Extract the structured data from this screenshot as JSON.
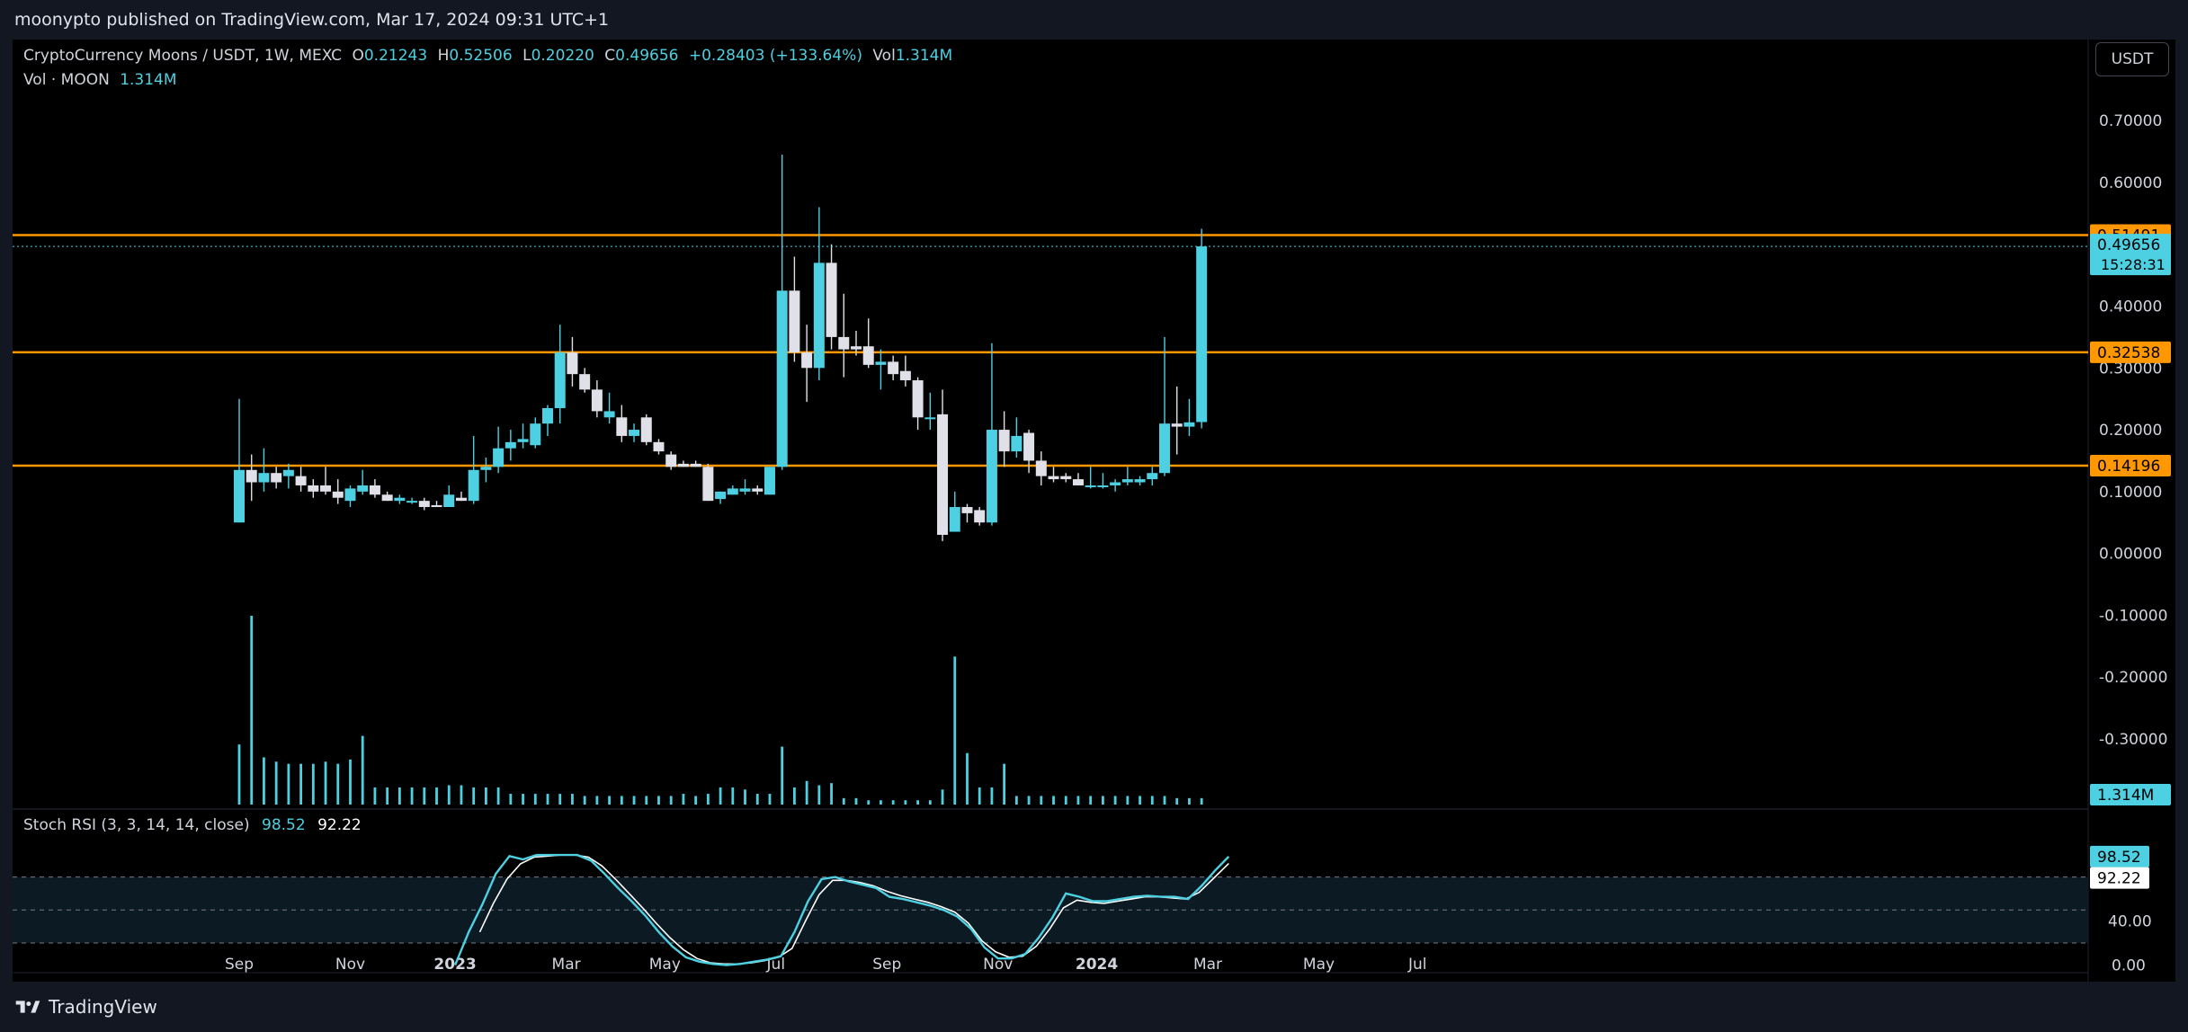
{
  "header": {
    "published_text": "moonypto published on TradingView.com, Mar 17, 2024 09:31 UTC+1"
  },
  "legend": {
    "symbol": "CryptoCurrency Moons / USDT, 1W, MEXC",
    "open_label": "O",
    "open": "0.21243",
    "high_label": "H",
    "high": "0.52506",
    "low_label": "L",
    "low": "0.20220",
    "close_label": "C",
    "close": "0.49656",
    "change": "+0.28403 (+133.64%)",
    "vol_label": "Vol",
    "vol": "1.314M",
    "vol_series_label": "Vol · MOON",
    "vol_series_value": "1.314M",
    "stoch_label": "Stoch RSI (3, 3, 14, 14, close)",
    "stoch_k": "98.52",
    "stoch_d": "92.22"
  },
  "currency_button": "USDT",
  "footer": {
    "brand": "TradingView"
  },
  "colors": {
    "up": "#4dd0e1",
    "down": "#e0e0e8",
    "level": "#ff9800",
    "background": "#000000",
    "d_line": "#ffffff"
  },
  "price_labels": {
    "last_price": "0.49656",
    "countdown": "15:28:31",
    "volume_last": "1.314M",
    "stoch_k_tag": "98.52",
    "stoch_d_tag": "92.22"
  },
  "chart_data": {
    "type": "candlestick",
    "y_axis": {
      "ticks": [
        0.7,
        0.6,
        0.4,
        0.3,
        0.2,
        0.1,
        0.0,
        -0.1,
        -0.2,
        -0.3
      ],
      "tick_labels": [
        "0.70000",
        "0.60000",
        "0.40000",
        "0.30000",
        "0.20000",
        "0.10000",
        "0.00000",
        "-0.10000",
        "-0.20000",
        "-0.30000"
      ],
      "range": [
        -0.41,
        0.78
      ]
    },
    "x_axis": {
      "labels": [
        "Sep",
        "Nov",
        "2023",
        "Mar",
        "May",
        "Jul",
        "Sep",
        "Nov",
        "2024",
        "Mar",
        "May",
        "Jul"
      ],
      "label_week_index": [
        0,
        9,
        17.5,
        26.5,
        34.5,
        43.5,
        52.5,
        61.5,
        69.5,
        78.5,
        87.5,
        95.5
      ]
    },
    "horizontal_levels": [
      {
        "value": 0.51491,
        "label": "0.51491"
      },
      {
        "value": 0.32538,
        "label": "0.32538"
      },
      {
        "value": 0.14196,
        "label": "0.14196"
      }
    ],
    "candles": [
      [
        0.05,
        0.25,
        0.05,
        0.135
      ],
      [
        0.135,
        0.16,
        0.085,
        0.115
      ],
      [
        0.115,
        0.17,
        0.1,
        0.13
      ],
      [
        0.13,
        0.14,
        0.105,
        0.115
      ],
      [
        0.125,
        0.145,
        0.105,
        0.135
      ],
      [
        0.125,
        0.14,
        0.1,
        0.11
      ],
      [
        0.11,
        0.12,
        0.09,
        0.1
      ],
      [
        0.11,
        0.14,
        0.095,
        0.1
      ],
      [
        0.1,
        0.12,
        0.08,
        0.09
      ],
      [
        0.085,
        0.11,
        0.075,
        0.105
      ],
      [
        0.1,
        0.135,
        0.095,
        0.11
      ],
      [
        0.11,
        0.12,
        0.09,
        0.095
      ],
      [
        0.095,
        0.1,
        0.085,
        0.085
      ],
      [
        0.085,
        0.095,
        0.08,
        0.09
      ],
      [
        0.085,
        0.09,
        0.08,
        0.085
      ],
      [
        0.085,
        0.09,
        0.07,
        0.075
      ],
      [
        0.078,
        0.085,
        0.075,
        0.075
      ],
      [
        0.075,
        0.11,
        0.075,
        0.095
      ],
      [
        0.09,
        0.1,
        0.085,
        0.085
      ],
      [
        0.085,
        0.19,
        0.08,
        0.135
      ],
      [
        0.135,
        0.155,
        0.115,
        0.14
      ],
      [
        0.14,
        0.205,
        0.13,
        0.17
      ],
      [
        0.17,
        0.2,
        0.15,
        0.18
      ],
      [
        0.18,
        0.21,
        0.17,
        0.185
      ],
      [
        0.175,
        0.22,
        0.17,
        0.21
      ],
      [
        0.21,
        0.24,
        0.19,
        0.235
      ],
      [
        0.235,
        0.37,
        0.21,
        0.325
      ],
      [
        0.325,
        0.35,
        0.27,
        0.29
      ],
      [
        0.29,
        0.3,
        0.26,
        0.265
      ],
      [
        0.265,
        0.28,
        0.22,
        0.23
      ],
      [
        0.22,
        0.26,
        0.21,
        0.23
      ],
      [
        0.22,
        0.24,
        0.18,
        0.19
      ],
      [
        0.19,
        0.21,
        0.18,
        0.2
      ],
      [
        0.22,
        0.225,
        0.175,
        0.18
      ],
      [
        0.18,
        0.185,
        0.16,
        0.165
      ],
      [
        0.16,
        0.165,
        0.135,
        0.14
      ],
      [
        0.145,
        0.15,
        0.14,
        0.14
      ],
      [
        0.145,
        0.15,
        0.14,
        0.14
      ],
      [
        0.14,
        0.145,
        0.085,
        0.085
      ],
      [
        0.088,
        0.1,
        0.08,
        0.1
      ],
      [
        0.095,
        0.11,
        0.095,
        0.105
      ],
      [
        0.1,
        0.12,
        0.095,
        0.105
      ],
      [
        0.105,
        0.11,
        0.095,
        0.1
      ],
      [
        0.095,
        0.14,
        0.095,
        0.14
      ],
      [
        0.14,
        0.645,
        0.135,
        0.425
      ],
      [
        0.425,
        0.48,
        0.31,
        0.325
      ],
      [
        0.325,
        0.37,
        0.245,
        0.3
      ],
      [
        0.3,
        0.56,
        0.28,
        0.47
      ],
      [
        0.47,
        0.5,
        0.33,
        0.35
      ],
      [
        0.35,
        0.42,
        0.285,
        0.33
      ],
      [
        0.335,
        0.36,
        0.32,
        0.33
      ],
      [
        0.335,
        0.38,
        0.3,
        0.305
      ],
      [
        0.305,
        0.33,
        0.265,
        0.31
      ],
      [
        0.31,
        0.32,
        0.28,
        0.29
      ],
      [
        0.295,
        0.32,
        0.27,
        0.28
      ],
      [
        0.28,
        0.285,
        0.2,
        0.22
      ],
      [
        0.22,
        0.26,
        0.2,
        0.22
      ],
      [
        0.225,
        0.265,
        0.02,
        0.03
      ],
      [
        0.035,
        0.1,
        0.035,
        0.075
      ],
      [
        0.075,
        0.08,
        0.05,
        0.065
      ],
      [
        0.07,
        0.075,
        0.045,
        0.05
      ],
      [
        0.05,
        0.34,
        0.045,
        0.2
      ],
      [
        0.2,
        0.23,
        0.14,
        0.165
      ],
      [
        0.165,
        0.22,
        0.155,
        0.19
      ],
      [
        0.195,
        0.2,
        0.13,
        0.15
      ],
      [
        0.15,
        0.165,
        0.11,
        0.125
      ],
      [
        0.125,
        0.14,
        0.115,
        0.12
      ],
      [
        0.125,
        0.13,
        0.115,
        0.12
      ],
      [
        0.12,
        0.13,
        0.11,
        0.11
      ],
      [
        0.11,
        0.14,
        0.105,
        0.11
      ],
      [
        0.11,
        0.13,
        0.105,
        0.11
      ],
      [
        0.11,
        0.12,
        0.1,
        0.115
      ],
      [
        0.115,
        0.14,
        0.11,
        0.12
      ],
      [
        0.115,
        0.125,
        0.11,
        0.12
      ],
      [
        0.12,
        0.14,
        0.11,
        0.13
      ],
      [
        0.13,
        0.35,
        0.125,
        0.21
      ],
      [
        0.21,
        0.27,
        0.16,
        0.205
      ],
      [
        0.205,
        0.25,
        0.19,
        0.212
      ],
      [
        0.21243,
        0.52506,
        0.2022,
        0.49656
      ]
    ],
    "volume": [
      0.28,
      0.88,
      0.22,
      0.2,
      0.19,
      0.19,
      0.19,
      0.2,
      0.19,
      0.21,
      0.32,
      0.08,
      0.08,
      0.08,
      0.08,
      0.08,
      0.08,
      0.09,
      0.09,
      0.08,
      0.08,
      0.08,
      0.05,
      0.05,
      0.05,
      0.05,
      0.05,
      0.05,
      0.04,
      0.04,
      0.04,
      0.04,
      0.04,
      0.04,
      0.04,
      0.04,
      0.05,
      0.04,
      0.05,
      0.08,
      0.08,
      0.07,
      0.05,
      0.05,
      0.27,
      0.08,
      0.11,
      0.09,
      0.1,
      0.03,
      0.03,
      0.02,
      0.02,
      0.02,
      0.02,
      0.02,
      0.02,
      0.07,
      0.69,
      0.24,
      0.08,
      0.08,
      0.19,
      0.04,
      0.04,
      0.04,
      0.04,
      0.04,
      0.04,
      0.04,
      0.04,
      0.04,
      0.04,
      0.04,
      0.04,
      0.04,
      0.03,
      0.03,
      0.03
    ],
    "stoch_rsi": {
      "y_labels": [
        "0.00",
        "40.00"
      ],
      "overbought": 80,
      "middle": 50,
      "oversold": 20,
      "k": [
        [
          17.5,
          0
        ],
        [
          18.6,
          30
        ],
        [
          19.7,
          55
        ],
        [
          20.8,
          83
        ],
        [
          21.9,
          99
        ],
        [
          23,
          96
        ],
        [
          24.1,
          100
        ],
        [
          25.2,
          100
        ],
        [
          26.3,
          100
        ],
        [
          27.4,
          100
        ],
        [
          28.5,
          95
        ],
        [
          29.6,
          83
        ],
        [
          30.7,
          70
        ],
        [
          31.8,
          58
        ],
        [
          32.9,
          45
        ],
        [
          34,
          30
        ],
        [
          35.1,
          17
        ],
        [
          36.2,
          7
        ],
        [
          37.3,
          3
        ],
        [
          38.4,
          1
        ],
        [
          39.5,
          0
        ],
        [
          40.6,
          1
        ],
        [
          41.7,
          3
        ],
        [
          42.8,
          5
        ],
        [
          43.9,
          8
        ],
        [
          45,
          30
        ],
        [
          46.1,
          58
        ],
        [
          47.2,
          78
        ],
        [
          48.3,
          80
        ],
        [
          49.4,
          76
        ],
        [
          50.5,
          73
        ],
        [
          51.6,
          70
        ],
        [
          52.7,
          62
        ],
        [
          53.8,
          60
        ],
        [
          54.9,
          57
        ],
        [
          56,
          54
        ],
        [
          57.1,
          50
        ],
        [
          58.2,
          44
        ],
        [
          59.3,
          33
        ],
        [
          60.4,
          16
        ],
        [
          61.5,
          6
        ],
        [
          62.6,
          6
        ],
        [
          63.7,
          10
        ],
        [
          64.8,
          25
        ],
        [
          65.9,
          43
        ],
        [
          67,
          65
        ],
        [
          68.1,
          62
        ],
        [
          69.2,
          58
        ],
        [
          70.3,
          58
        ],
        [
          71.4,
          60
        ],
        [
          72.5,
          62
        ],
        [
          73.6,
          63
        ],
        [
          74.7,
          62
        ],
        [
          75.8,
          62
        ],
        [
          76.9,
          60
        ],
        [
          78,
          72
        ],
        [
          79.1,
          86
        ],
        [
          80.2,
          98.52
        ]
      ],
      "d": [
        [
          19.5,
          30
        ],
        [
          20.6,
          56
        ],
        [
          21.7,
          78
        ],
        [
          22.8,
          92
        ],
        [
          23.9,
          98
        ],
        [
          25,
          99
        ],
        [
          26.1,
          100
        ],
        [
          27.2,
          100
        ],
        [
          28.3,
          98
        ],
        [
          29.4,
          90
        ],
        [
          30.5,
          78
        ],
        [
          31.6,
          65
        ],
        [
          32.7,
          52
        ],
        [
          33.8,
          38
        ],
        [
          34.9,
          25
        ],
        [
          36,
          14
        ],
        [
          37.1,
          6
        ],
        [
          38.2,
          2
        ],
        [
          39.3,
          1
        ],
        [
          40.4,
          1
        ],
        [
          41.5,
          2
        ],
        [
          42.6,
          4
        ],
        [
          43.7,
          7
        ],
        [
          44.8,
          15
        ],
        [
          45.9,
          40
        ],
        [
          47,
          64
        ],
        [
          48.1,
          77
        ],
        [
          49.2,
          77
        ],
        [
          50.3,
          75
        ],
        [
          51.4,
          72
        ],
        [
          52.5,
          67
        ],
        [
          53.6,
          63
        ],
        [
          54.7,
          60
        ],
        [
          55.8,
          57
        ],
        [
          56.9,
          53
        ],
        [
          58,
          48
        ],
        [
          59.1,
          38
        ],
        [
          60.2,
          22
        ],
        [
          61.3,
          12
        ],
        [
          62.4,
          7
        ],
        [
          63.5,
          8
        ],
        [
          64.6,
          17
        ],
        [
          65.7,
          33
        ],
        [
          66.8,
          52
        ],
        [
          67.9,
          59
        ],
        [
          69,
          57
        ],
        [
          70.1,
          56
        ],
        [
          71.2,
          58
        ],
        [
          72.3,
          60
        ],
        [
          73.4,
          62
        ],
        [
          74.5,
          62
        ],
        [
          75.6,
          61
        ],
        [
          76.7,
          60
        ],
        [
          77.8,
          66
        ],
        [
          78.9,
          78
        ],
        [
          80.2,
          92.22
        ]
      ]
    }
  }
}
